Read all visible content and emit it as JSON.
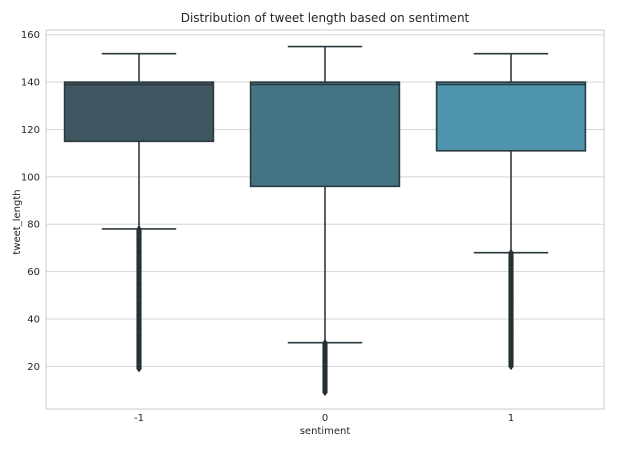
{
  "chart_data": {
    "type": "box",
    "title": "Distribution of tweet length based on sentiment",
    "xlabel": "sentiment",
    "ylabel": "tweet_length",
    "categories": [
      "-1",
      "0",
      "1"
    ],
    "ylim": [
      2,
      162
    ],
    "yticks": [
      20,
      40,
      60,
      80,
      100,
      120,
      140,
      160
    ],
    "grid": true,
    "boxes": [
      {
        "category": "-1",
        "whisker_low": 78,
        "q1": 115,
        "median": 139,
        "q3": 140,
        "whisker_high": 152,
        "outliers_range": [
          19,
          78
        ]
      },
      {
        "category": "0",
        "whisker_low": 30,
        "q1": 96,
        "median": 139,
        "q3": 140,
        "whisker_high": 155,
        "outliers_range": [
          9,
          30
        ]
      },
      {
        "category": "1",
        "whisker_low": 68,
        "q1": 111,
        "median": 139,
        "q3": 140,
        "whisker_high": 152,
        "outliers_range": [
          20,
          68
        ]
      }
    ],
    "colors": {
      "boxes": [
        "#3f5560",
        "#457584",
        "#4f94ad"
      ],
      "lines": "#2b3a3f",
      "grid": "#d6d6d6",
      "frame": "#cccccc"
    }
  }
}
